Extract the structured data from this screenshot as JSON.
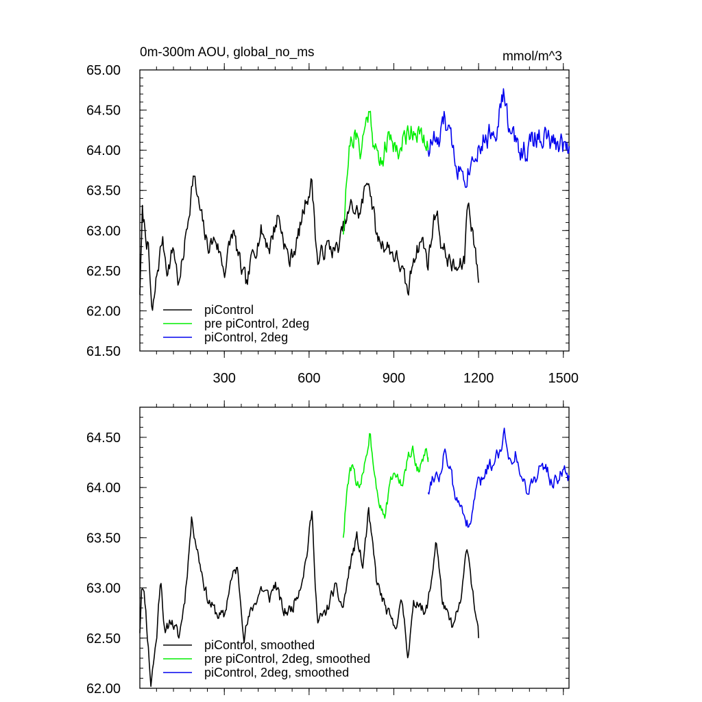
{
  "chart_data": [
    {
      "type": "line",
      "title": "0m-300m AOU, global_no_ms",
      "units_label": "mmol/m^3",
      "xlim": [
        1,
        1520
      ],
      "ylim": [
        61.5,
        65.0
      ],
      "xticks": [
        300,
        600,
        900,
        1200,
        1500
      ],
      "xtick_labels": [
        "300",
        "600",
        "900",
        "1200",
        "1500"
      ],
      "yticks": [
        61.5,
        62.0,
        62.5,
        63.0,
        63.5,
        64.0,
        64.5,
        65.0
      ],
      "ytick_labels": [
        "61.50",
        "62.00",
        "62.50",
        "63.00",
        "63.50",
        "64.00",
        "64.50",
        "65.00"
      ],
      "series": [
        {
          "name": "piControl",
          "color": "#000000",
          "x_start": 1,
          "x_end": 1200,
          "y_start": 62.2,
          "y_end": 62.35,
          "anchors": [
            [
              1,
              62.2
            ],
            [
              10,
              63.2
            ],
            [
              30,
              62.8
            ],
            [
              45,
              61.9
            ],
            [
              60,
              62.4
            ],
            [
              80,
              62.9
            ],
            [
              100,
              62.5
            ],
            [
              120,
              62.8
            ],
            [
              140,
              62.3
            ],
            [
              170,
              63.1
            ],
            [
              190,
              63.7
            ],
            [
              210,
              63.3
            ],
            [
              240,
              62.8
            ],
            [
              270,
              62.9
            ],
            [
              300,
              62.5
            ],
            [
              330,
              63.0
            ],
            [
              360,
              62.5
            ],
            [
              380,
              62.3
            ],
            [
              400,
              62.7
            ],
            [
              430,
              63.0
            ],
            [
              460,
              62.8
            ],
            [
              490,
              63.2
            ],
            [
              530,
              62.6
            ],
            [
              560,
              62.9
            ],
            [
              590,
              63.4
            ],
            [
              610,
              63.6
            ],
            [
              630,
              62.6
            ],
            [
              660,
              62.8
            ],
            [
              700,
              62.75
            ],
            [
              720,
              63.0
            ],
            [
              750,
              63.3
            ],
            [
              780,
              63.2
            ],
            [
              810,
              63.7
            ],
            [
              840,
              62.9
            ],
            [
              880,
              62.8
            ],
            [
              920,
              62.6
            ],
            [
              950,
              62.2
            ],
            [
              970,
              62.7
            ],
            [
              1000,
              62.9
            ],
            [
              1020,
              62.6
            ],
            [
              1050,
              63.3
            ],
            [
              1070,
              62.8
            ],
            [
              1100,
              62.6
            ],
            [
              1120,
              62.5
            ],
            [
              1150,
              62.6
            ],
            [
              1160,
              63.4
            ],
            [
              1180,
              63.0
            ],
            [
              1200,
              62.35
            ]
          ],
          "noise": 0.22,
          "seed": 7
        },
        {
          "name": "pre piControl, 2deg",
          "color": "#00ee00",
          "x_start": 721,
          "x_end": 1021,
          "y_start": 62.95,
          "y_end": 64.0,
          "anchors": [
            [
              721,
              62.95
            ],
            [
              730,
              63.6
            ],
            [
              745,
              64.1
            ],
            [
              760,
              64.2
            ],
            [
              780,
              64.0
            ],
            [
              800,
              64.3
            ],
            [
              815,
              64.55
            ],
            [
              830,
              64.1
            ],
            [
              850,
              63.8
            ],
            [
              870,
              64.05
            ],
            [
              890,
              64.15
            ],
            [
              920,
              64.0
            ],
            [
              950,
              64.25
            ],
            [
              980,
              64.3
            ],
            [
              1000,
              64.1
            ],
            [
              1021,
              64.0
            ]
          ],
          "noise": 0.28,
          "seed": 21
        },
        {
          "name": "piControl, 2deg",
          "color": "#0000ee",
          "x_start": 1021,
          "x_end": 1521,
          "y_start": 64.0,
          "y_end": 64.05,
          "anchors": [
            [
              1021,
              64.0
            ],
            [
              1040,
              64.15
            ],
            [
              1060,
              64.05
            ],
            [
              1080,
              64.4
            ],
            [
              1100,
              64.1
            ],
            [
              1130,
              63.8
            ],
            [
              1160,
              63.75
            ],
            [
              1190,
              64.05
            ],
            [
              1210,
              64.1
            ],
            [
              1240,
              64.2
            ],
            [
              1260,
              64.3
            ],
            [
              1290,
              64.7
            ],
            [
              1310,
              64.2
            ],
            [
              1340,
              64.05
            ],
            [
              1370,
              64.0
            ],
            [
              1400,
              64.15
            ],
            [
              1430,
              64.2
            ],
            [
              1460,
              64.05
            ],
            [
              1490,
              64.1
            ],
            [
              1521,
              64.05
            ]
          ],
          "noise": 0.3,
          "seed": 33
        }
      ],
      "legend": {
        "location": "lower-left",
        "entries": [
          "piControl",
          "pre piControl, 2deg",
          "piControl, 2deg"
        ]
      }
    },
    {
      "type": "line",
      "title": "",
      "xlim": [
        1,
        1520
      ],
      "ylim": [
        62.0,
        64.8
      ],
      "xticks": [
        300,
        600,
        900,
        1200,
        1500
      ],
      "xtick_labels": [],
      "yticks": [
        62.0,
        62.5,
        63.0,
        63.5,
        64.0,
        64.5
      ],
      "ytick_labels": [
        "62.00",
        "62.50",
        "63.00",
        "63.50",
        "64.00",
        "64.50"
      ],
      "series": [
        {
          "name": "piControl, smoothed",
          "color": "#000000",
          "x_start": 1,
          "x_end": 1200,
          "y_start": 62.55,
          "y_end": 62.5,
          "anchors": [
            [
              1,
              62.55
            ],
            [
              8,
              63.1
            ],
            [
              20,
              62.85
            ],
            [
              40,
              62.05
            ],
            [
              60,
              62.5
            ],
            [
              75,
              63.15
            ],
            [
              90,
              62.5
            ],
            [
              110,
              62.7
            ],
            [
              140,
              62.5
            ],
            [
              160,
              62.9
            ],
            [
              185,
              63.7
            ],
            [
              210,
              63.3
            ],
            [
              240,
              62.9
            ],
            [
              270,
              62.75
            ],
            [
              300,
              62.7
            ],
            [
              320,
              63.05
            ],
            [
              345,
              63.2
            ],
            [
              370,
              62.55
            ],
            [
              400,
              62.8
            ],
            [
              430,
              63.0
            ],
            [
              460,
              62.9
            ],
            [
              480,
              63.05
            ],
            [
              510,
              62.75
            ],
            [
              540,
              62.8
            ],
            [
              570,
              63.05
            ],
            [
              590,
              63.3
            ],
            [
              610,
              63.75
            ],
            [
              630,
              62.65
            ],
            [
              660,
              62.75
            ],
            [
              690,
              63.0
            ],
            [
              720,
              62.8
            ],
            [
              750,
              63.3
            ],
            [
              770,
              63.5
            ],
            [
              790,
              63.2
            ],
            [
              810,
              63.75
            ],
            [
              840,
              63.05
            ],
            [
              870,
              62.8
            ],
            [
              900,
              62.6
            ],
            [
              930,
              62.85
            ],
            [
              950,
              62.35
            ],
            [
              970,
              62.8
            ],
            [
              990,
              62.9
            ],
            [
              1010,
              62.7
            ],
            [
              1030,
              63.0
            ],
            [
              1050,
              63.5
            ],
            [
              1070,
              62.9
            ],
            [
              1090,
              62.7
            ],
            [
              1110,
              62.6
            ],
            [
              1140,
              62.9
            ],
            [
              1160,
              63.45
            ],
            [
              1180,
              62.95
            ],
            [
              1200,
              62.5
            ]
          ],
          "noise": 0.12,
          "seed": 11
        },
        {
          "name": "pre piControl, 2deg, smoothed",
          "color": "#00ee00",
          "x_start": 721,
          "x_end": 1021,
          "y_start": 63.5,
          "y_end": 64.3,
          "anchors": [
            [
              721,
              63.5
            ],
            [
              735,
              64.0
            ],
            [
              750,
              64.2
            ],
            [
              765,
              64.1
            ],
            [
              780,
              63.95
            ],
            [
              800,
              64.3
            ],
            [
              815,
              64.55
            ],
            [
              830,
              64.2
            ],
            [
              850,
              63.85
            ],
            [
              870,
              63.75
            ],
            [
              890,
              64.05
            ],
            [
              910,
              64.15
            ],
            [
              930,
              64.0
            ],
            [
              950,
              64.3
            ],
            [
              970,
              64.35
            ],
            [
              990,
              64.15
            ],
            [
              1010,
              64.35
            ],
            [
              1021,
              64.3
            ]
          ],
          "noise": 0.12,
          "seed": 44
        },
        {
          "name": "piControl, 2deg, smoothed",
          "color": "#0000ee",
          "x_start": 1021,
          "x_end": 1521,
          "y_start": 63.95,
          "y_end": 64.1,
          "anchors": [
            [
              1021,
              63.95
            ],
            [
              1040,
              64.15
            ],
            [
              1060,
              64.1
            ],
            [
              1080,
              64.4
            ],
            [
              1100,
              64.15
            ],
            [
              1120,
              63.85
            ],
            [
              1145,
              63.8
            ],
            [
              1170,
              63.55
            ],
            [
              1190,
              64.0
            ],
            [
              1210,
              64.05
            ],
            [
              1230,
              64.2
            ],
            [
              1250,
              64.25
            ],
            [
              1270,
              64.35
            ],
            [
              1290,
              64.55
            ],
            [
              1310,
              64.3
            ],
            [
              1330,
              64.35
            ],
            [
              1350,
              64.1
            ],
            [
              1370,
              64.0
            ],
            [
              1390,
              64.05
            ],
            [
              1410,
              64.15
            ],
            [
              1440,
              64.2
            ],
            [
              1460,
              64.05
            ],
            [
              1490,
              64.15
            ],
            [
              1521,
              64.1
            ]
          ],
          "noise": 0.14,
          "seed": 55
        }
      ],
      "legend": {
        "location": "lower-left",
        "entries": [
          "piControl, smoothed",
          "pre piControl, 2deg, smoothed",
          "piControl, 2deg, smoothed"
        ]
      }
    }
  ]
}
